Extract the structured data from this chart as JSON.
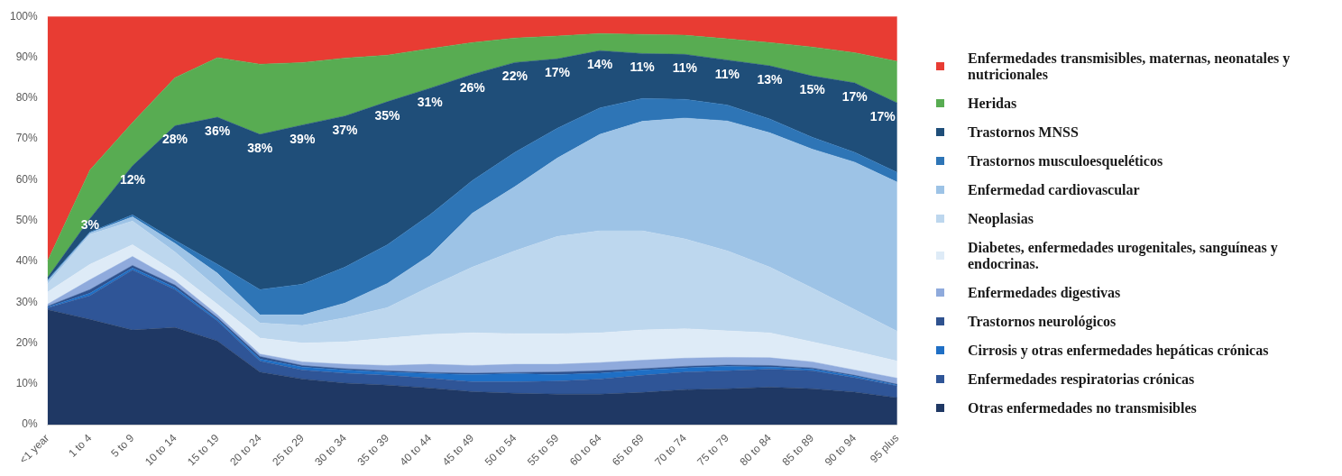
{
  "chart_data": {
    "type": "area",
    "stacked": true,
    "legend": "right",
    "ylim": [
      0,
      100
    ],
    "yticks": [
      {
        "value": 0,
        "label": "0%"
      },
      {
        "value": 10,
        "label": "10%"
      },
      {
        "value": 20,
        "label": "20%"
      },
      {
        "value": 30,
        "label": "30%"
      },
      {
        "value": 40,
        "label": "40%"
      },
      {
        "value": 50,
        "label": "50%"
      },
      {
        "value": 60,
        "label": "60%"
      },
      {
        "value": 70,
        "label": "70%"
      },
      {
        "value": 80,
        "label": "80%"
      },
      {
        "value": 90,
        "label": "90%"
      },
      {
        "value": 100,
        "label": "100%"
      }
    ],
    "categories": [
      "<1 year",
      "1 to 4",
      "5 to 9",
      "10 to 14",
      "15 to 19",
      "20 to 24",
      "25 to 29",
      "30 to 34",
      "35 to 39",
      "40 to 44",
      "45 to 49",
      "50 to 54",
      "55 to 59",
      "60 to 64",
      "65 to 69",
      "70 to 74",
      "75 to 79",
      "80 to 84",
      "85 to 89",
      "90 to 94",
      "95 plus"
    ],
    "series": [
      {
        "name": "Otras enfermedades no transmisibles",
        "color": "#1f3864",
        "values": [
          28.2,
          25.8,
          23.2,
          23.8,
          20.5,
          12.9,
          11.2,
          10.2,
          9.7,
          9.0,
          8.1,
          7.7,
          7.5,
          7.5,
          7.9,
          8.6,
          8.8,
          9.2,
          8.8,
          8.0,
          6.6
        ]
      },
      {
        "name": "Enfermedades respiratorias crónicas",
        "color": "#2f5597",
        "values": [
          0.4,
          5.8,
          14.7,
          9.3,
          4.9,
          2.7,
          2.2,
          2.4,
          2.4,
          2.4,
          2.4,
          2.8,
          3.2,
          3.7,
          4.2,
          4.3,
          4.4,
          4.4,
          4.4,
          3.5,
          2.9
        ]
      },
      {
        "name": "Cirrosis y otras enfermedades hepáticas crónicas",
        "color": "#1f6fc5",
        "values": [
          0.2,
          0.6,
          0.5,
          0.5,
          0.4,
          0.5,
          0.7,
          0.8,
          0.8,
          1.1,
          1.8,
          2.0,
          1.6,
          1.4,
          1.3,
          1.0,
          1.1,
          0.5,
          0.4,
          0.4,
          0.2
        ]
      },
      {
        "name": "Trastornos neurológicos",
        "color": "#2f528f",
        "values": [
          0.2,
          0.9,
          0.6,
          0.6,
          0.4,
          0.6,
          0.4,
          0.3,
          0.3,
          0.3,
          0.3,
          0.3,
          0.6,
          0.6,
          0.3,
          0.4,
          0.3,
          0.4,
          0.3,
          0.2,
          0.2
        ]
      },
      {
        "name": "Enfermedades digestivas",
        "color": "#8faadc",
        "values": [
          0.5,
          2.4,
          2.2,
          1.1,
          0.7,
          0.6,
          0.9,
          1.1,
          1.3,
          2.0,
          1.9,
          2.0,
          1.9,
          2.0,
          2.1,
          2.0,
          1.9,
          1.9,
          1.5,
          1.3,
          1.5
        ]
      },
      {
        "name": "Diabetes, enfermedades urogenitales, sanguíneas y endocrinas.",
        "color": "#deebf7",
        "values": [
          3.0,
          3.8,
          2.9,
          2.2,
          2.6,
          3.9,
          4.6,
          5.5,
          6.7,
          7.3,
          8.0,
          7.5,
          7.5,
          7.3,
          7.4,
          7.2,
          6.5,
          6.1,
          4.9,
          4.6,
          4.2
        ]
      },
      {
        "name": "Neoplasias",
        "color": "#bdd7ee",
        "values": [
          2.0,
          7.3,
          5.8,
          4.8,
          4.0,
          3.7,
          4.3,
          5.9,
          7.5,
          11.7,
          16.1,
          20.3,
          23.8,
          25.0,
          24.3,
          22.0,
          19.6,
          16.1,
          13.2,
          10.2,
          7.3
        ]
      },
      {
        "name": "Enfermedad cardiovascular",
        "color": "#9dc3e6",
        "values": [
          0.7,
          0.4,
          1.0,
          2.1,
          3.6,
          2.0,
          2.6,
          3.6,
          5.9,
          7.7,
          13.2,
          15.7,
          19.2,
          23.6,
          26.8,
          29.6,
          31.8,
          32.9,
          34.0,
          36.1,
          36.5
        ]
      },
      {
        "name": "Trastornos musculoesqueléticos",
        "color": "#2e75b6",
        "values": [
          0.3,
          0.2,
          0.5,
          0.8,
          2.2,
          6.2,
          7.5,
          8.8,
          9.5,
          9.9,
          8.0,
          8.4,
          7.3,
          6.5,
          5.6,
          4.6,
          3.9,
          3.4,
          2.9,
          2.4,
          2.4
        ]
      },
      {
        "name": "Trastornos MNSS",
        "color": "#1f4e79",
        "values": [
          0.5,
          3.3,
          12.0,
          28.0,
          36.0,
          38.0,
          39.0,
          37.0,
          35.0,
          31.0,
          26.0,
          22.0,
          17.0,
          14.0,
          11.0,
          11.0,
          11.0,
          13.0,
          15.0,
          17.0,
          17.0
        ],
        "value_labels": [
          null,
          "3%",
          "12%",
          "28%",
          "36%",
          "38%",
          "39%",
          "37%",
          "35%",
          "31%",
          "26%",
          "22%",
          "17%",
          "14%",
          "11%",
          "11%",
          "11%",
          "13%",
          "15%",
          "17%",
          "17%"
        ]
      },
      {
        "name": "Heridas",
        "color": "#58ac52",
        "values": [
          4.1,
          11.9,
          10.6,
          11.8,
          14.6,
          17.2,
          15.3,
          14.2,
          11.4,
          9.7,
          7.8,
          6.0,
          5.6,
          4.2,
          4.7,
          4.7,
          5.2,
          5.7,
          7.1,
          7.4,
          10.2
        ]
      },
      {
        "name": "Enfermedades transmisibles, maternas, neonatales y nutricionales",
        "color": "#e83c33",
        "values": [
          59.9,
          37.6,
          26.0,
          15.0,
          10.1,
          11.7,
          11.3,
          10.2,
          9.5,
          7.9,
          6.4,
          5.3,
          4.8,
          4.2,
          4.4,
          4.6,
          5.5,
          6.4,
          7.5,
          8.9,
          11.0
        ]
      }
    ]
  }
}
